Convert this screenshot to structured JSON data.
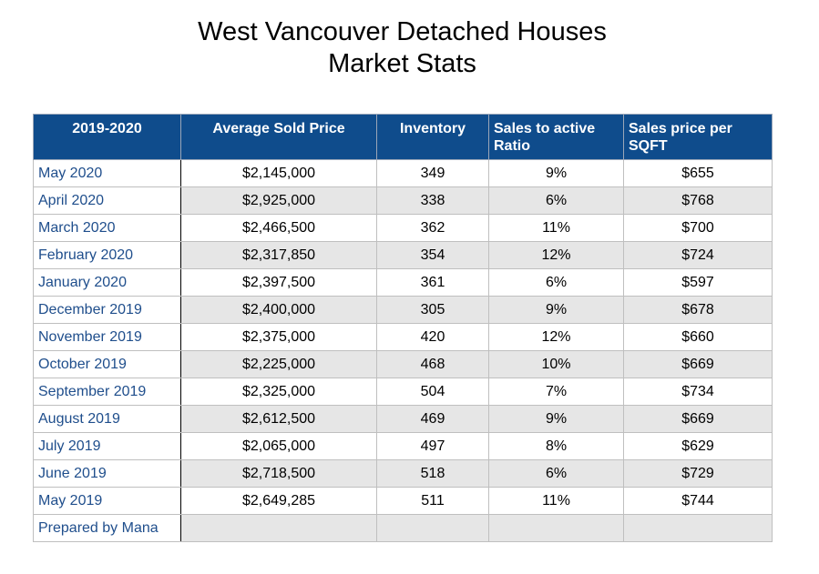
{
  "title": {
    "line1": "West Vancouver Detached Houses",
    "line2": "Market Stats"
  },
  "colors": {
    "header_bg": "#0f4c8c",
    "header_text": "#ffffff",
    "first_column_text": "#1f4e8c",
    "alt_row_bg": "#e6e6e6"
  },
  "chart_data": {
    "type": "table",
    "columns": [
      "2019-2020",
      "Average Sold Price",
      "Inventory",
      "Sales to active Ratio",
      "Sales price per SQFT"
    ],
    "rows": [
      [
        "May 2020",
        "$2,145,000",
        "349",
        "9%",
        "$655"
      ],
      [
        "April 2020",
        "$2,925,000",
        "338",
        "6%",
        "$768"
      ],
      [
        "March 2020",
        "$2,466,500",
        "362",
        "11%",
        "$700"
      ],
      [
        "February 2020",
        "$2,317,850",
        "354",
        "12%",
        "$724"
      ],
      [
        "January 2020",
        "$2,397,500",
        "361",
        "6%",
        "$597"
      ],
      [
        "December 2019",
        "$2,400,000",
        "305",
        "9%",
        "$678"
      ],
      [
        "November 2019",
        "$2,375,000",
        "420",
        "12%",
        "$660"
      ],
      [
        "October 2019",
        "$2,225,000",
        "468",
        "10%",
        "$669"
      ],
      [
        "September 2019",
        "$2,325,000",
        "504",
        "7%",
        "$734"
      ],
      [
        "August 2019",
        "$2,612,500",
        "469",
        "9%",
        "$669"
      ],
      [
        "July 2019",
        "$2,065,000",
        "497",
        "8%",
        "$629"
      ],
      [
        "June 2019",
        "$2,718,500",
        "518",
        "6%",
        "$729"
      ],
      [
        "May 2019",
        "$2,649,285",
        "511",
        "11%",
        "$744"
      ]
    ],
    "footer_row": [
      "Prepared by Mana",
      "",
      "",
      "",
      ""
    ]
  }
}
